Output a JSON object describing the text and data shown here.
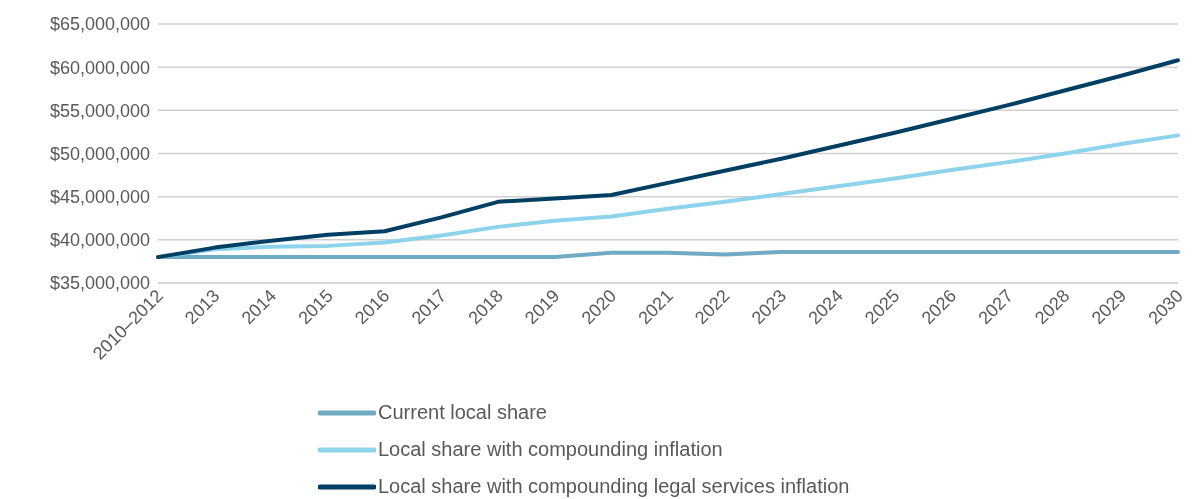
{
  "chart_data": {
    "type": "line",
    "categories": [
      "2010–2012",
      "2013",
      "2014",
      "2015",
      "2016",
      "2017",
      "2018",
      "2019",
      "2020",
      "2021",
      "2022",
      "2023",
      "2024",
      "2025",
      "2026",
      "2027",
      "2028",
      "2029",
      "2030"
    ],
    "series": [
      {
        "name": "Current local share",
        "color": "#6fabc4",
        "values": [
          38000000,
          38000000,
          38000000,
          38000000,
          38000000,
          38000000,
          38000000,
          38000000,
          38500000,
          38500000,
          38300000,
          38600000,
          38600000,
          38600000,
          38600000,
          38600000,
          38600000,
          38600000,
          38600000
        ]
      },
      {
        "name": "Local share with compounding inflation",
        "color": "#8dd3ec",
        "values": [
          38000000,
          38900000,
          39200000,
          39300000,
          39700000,
          40500000,
          41500000,
          42200000,
          42700000,
          43600000,
          44400000,
          45300000,
          46200000,
          47100000,
          48100000,
          49000000,
          50000000,
          51100000,
          52100000
        ]
      },
      {
        "name": "Local share with compounding legal services inflation",
        "color": "#003f63",
        "values": [
          38000000,
          39100000,
          39900000,
          40600000,
          41000000,
          42600000,
          44400000,
          44800000,
          45200000,
          46600000,
          48000000,
          49400000,
          50900000,
          52400000,
          54000000,
          55600000,
          57300000,
          59000000,
          60800000
        ]
      }
    ],
    "ylim": [
      35000000,
      65000000
    ],
    "yticks": [
      {
        "value": 35000000,
        "label": "$35,000,000"
      },
      {
        "value": 40000000,
        "label": "$40,000,000"
      },
      {
        "value": 45000000,
        "label": "$45,000,000"
      },
      {
        "value": 50000000,
        "label": "$50,000,000"
      },
      {
        "value": 55000000,
        "label": "$55,000,000"
      },
      {
        "value": 60000000,
        "label": "$60,000,000"
      },
      {
        "value": 65000000,
        "label": "$65,000,000"
      }
    ],
    "grid": "y",
    "legend": "bottom",
    "marker": "none",
    "line_style": "solid"
  }
}
